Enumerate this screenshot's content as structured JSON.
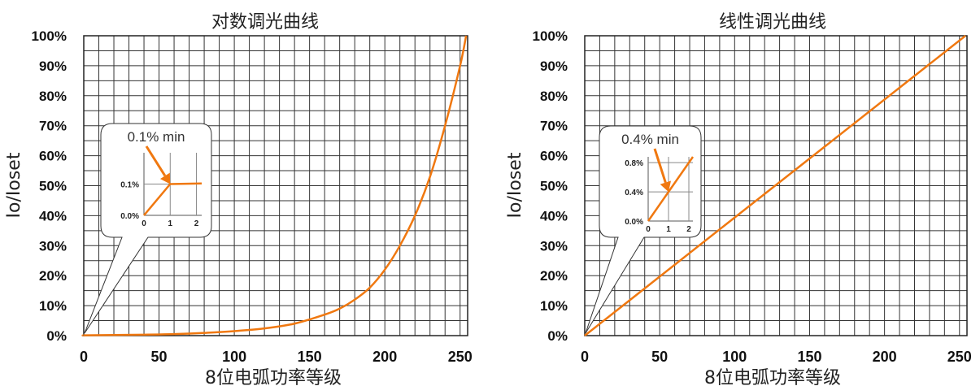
{
  "chart_data": [
    {
      "type": "line",
      "title": "对数调光曲线",
      "xlabel": "8位电弧功率等级",
      "ylabel": "Io/Ioset",
      "xlim": [
        0,
        255
      ],
      "ylim": [
        0,
        100
      ],
      "xticks": [
        0,
        50,
        100,
        150,
        200,
        250
      ],
      "xtick_labels": [
        "0",
        "50",
        "100",
        "150",
        "200",
        "250"
      ],
      "yticks": [
        0,
        10,
        20,
        30,
        40,
        50,
        60,
        70,
        80,
        90,
        100
      ],
      "ytick_labels": [
        "0%",
        "10%",
        "20%",
        "30%",
        "40%",
        "50%",
        "60%",
        "70%",
        "80%",
        "90%",
        "100%"
      ],
      "grid": true,
      "series": [
        {
          "color": "#F07810",
          "x": [
            0,
            1,
            20,
            40,
            60,
            80,
            100,
            120,
            140,
            160,
            170,
            180,
            190,
            200,
            210,
            220,
            230,
            240,
            250,
            254
          ],
          "y": [
            0,
            0.1,
            0.2,
            0.3,
            0.5,
            0.9,
            1.5,
            2.4,
            4.0,
            7.0,
            9.0,
            12.0,
            16.0,
            22.0,
            30.0,
            40.0,
            53.0,
            70.0,
            90.0,
            100.0
          ]
        }
      ],
      "inset": {
        "note": "0.1% min",
        "yticks": [
          "0.0%",
          "0.1%"
        ],
        "xticks": [
          "0",
          "1",
          "2"
        ],
        "x": [
          0,
          1,
          2.2
        ],
        "y": [
          0,
          0.1,
          0.102
        ]
      }
    },
    {
      "type": "line",
      "title": "线性调光曲线",
      "xlabel": "8位电弧功率等级",
      "ylabel": "Io/Ioset",
      "xlim": [
        0,
        255
      ],
      "ylim": [
        0,
        100
      ],
      "xticks": [
        0,
        50,
        100,
        150,
        200,
        250
      ],
      "xtick_labels": [
        "0",
        "50",
        "100",
        "150",
        "200",
        "250"
      ],
      "yticks": [
        0,
        10,
        20,
        30,
        40,
        50,
        60,
        70,
        80,
        90,
        100
      ],
      "ytick_labels": [
        "0%",
        "10%",
        "20%",
        "30%",
        "40%",
        "50%",
        "60%",
        "70%",
        "80%",
        "90%",
        "100%"
      ],
      "grid": true,
      "series": [
        {
          "color": "#F07810",
          "x": [
            0,
            254
          ],
          "y": [
            0,
            100
          ]
        }
      ],
      "inset": {
        "note": "0.4% min",
        "yticks": [
          "0.0%",
          "0.4%",
          "0.8%"
        ],
        "xticks": [
          "0",
          "1",
          "2"
        ],
        "x": [
          0,
          2.2
        ],
        "y": [
          0,
          0.88
        ]
      }
    }
  ]
}
